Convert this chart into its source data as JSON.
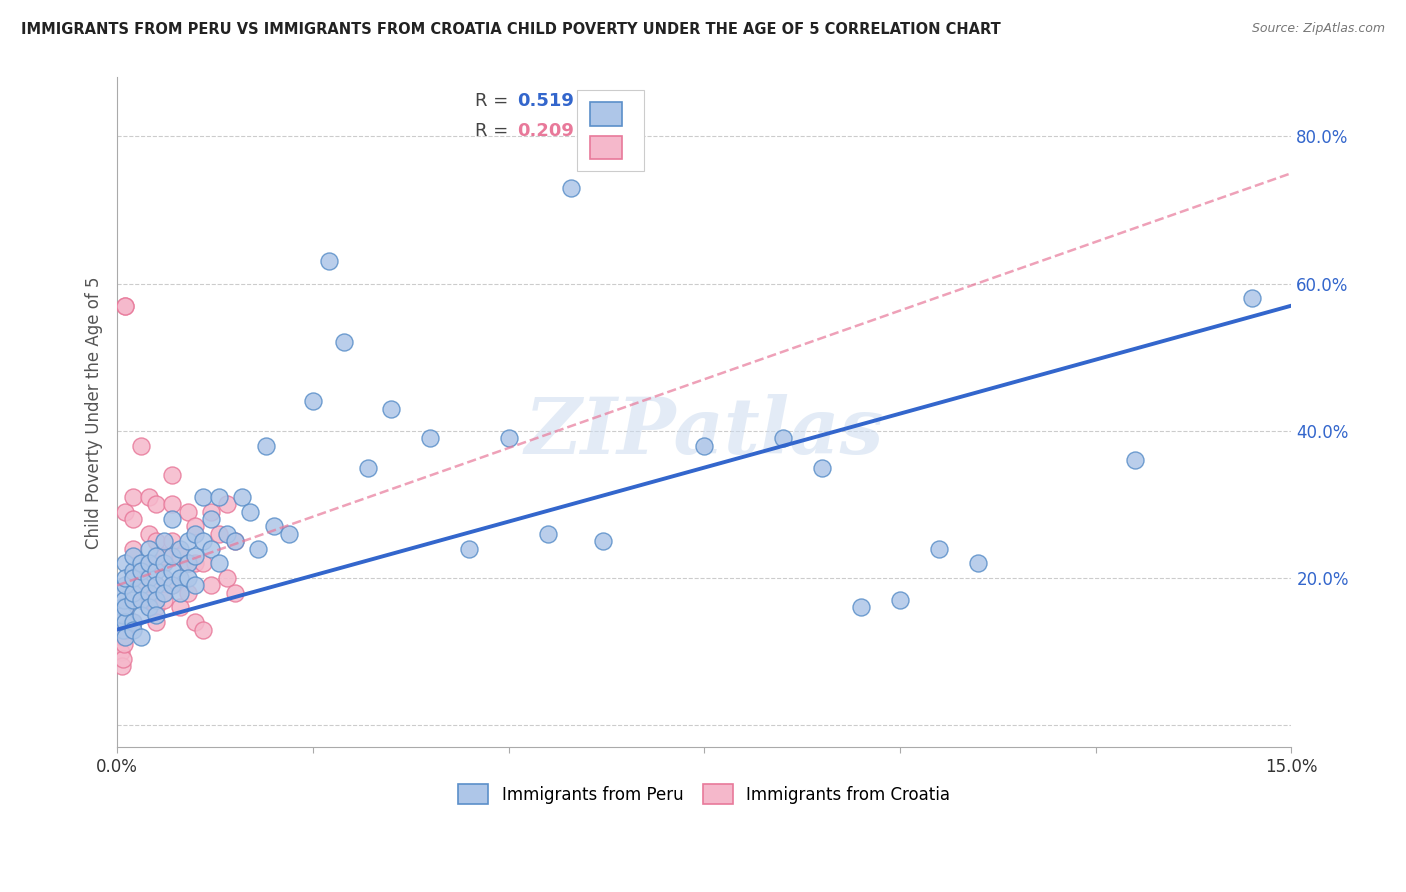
{
  "title": "IMMIGRANTS FROM PERU VS IMMIGRANTS FROM CROATIA CHILD POVERTY UNDER THE AGE OF 5 CORRELATION CHART",
  "source": "Source: ZipAtlas.com",
  "ylabel": "Child Poverty Under the Age of 5",
  "xlim": [
    0,
    0.15
  ],
  "ylim": [
    -0.03,
    0.88
  ],
  "xticks": [
    0.0,
    0.025,
    0.05,
    0.075,
    0.1,
    0.125,
    0.15
  ],
  "xticklabels": [
    "0.0%",
    "",
    "",
    "",
    "",
    "",
    "15.0%"
  ],
  "yticks": [
    0.0,
    0.2,
    0.4,
    0.6,
    0.8
  ],
  "yticklabels": [
    "",
    "20.0%",
    "40.0%",
    "60.0%",
    "80.0%"
  ],
  "peru_color": "#aec6e8",
  "peru_edge_color": "#5b8fc9",
  "croatia_color": "#f5b8cb",
  "croatia_edge_color": "#e8799a",
  "trend_peru_color": "#3366cc",
  "trend_croatia_color": "#e8799a",
  "watermark": "ZIPatlas",
  "peru_x": [
    0.0005,
    0.0006,
    0.0007,
    0.0008,
    0.0009,
    0.001,
    0.001,
    0.001,
    0.001,
    0.001,
    0.001,
    0.002,
    0.002,
    0.002,
    0.002,
    0.002,
    0.002,
    0.002,
    0.003,
    0.003,
    0.003,
    0.003,
    0.003,
    0.003,
    0.004,
    0.004,
    0.004,
    0.004,
    0.004,
    0.005,
    0.005,
    0.005,
    0.005,
    0.005,
    0.006,
    0.006,
    0.006,
    0.006,
    0.007,
    0.007,
    0.007,
    0.007,
    0.008,
    0.008,
    0.008,
    0.009,
    0.009,
    0.009,
    0.01,
    0.01,
    0.01,
    0.011,
    0.011,
    0.012,
    0.012,
    0.013,
    0.013,
    0.014,
    0.015,
    0.016,
    0.017,
    0.018,
    0.019,
    0.02,
    0.022,
    0.025,
    0.027,
    0.029,
    0.032,
    0.035,
    0.04,
    0.045,
    0.05,
    0.055,
    0.058,
    0.062,
    0.075,
    0.085,
    0.09,
    0.095,
    0.1,
    0.105,
    0.11,
    0.13,
    0.145
  ],
  "peru_y": [
    0.18,
    0.16,
    0.13,
    0.15,
    0.17,
    0.19,
    0.22,
    0.14,
    0.2,
    0.16,
    0.12,
    0.17,
    0.21,
    0.14,
    0.23,
    0.13,
    0.18,
    0.2,
    0.19,
    0.17,
    0.22,
    0.15,
    0.21,
    0.12,
    0.2,
    0.18,
    0.24,
    0.16,
    0.22,
    0.21,
    0.19,
    0.17,
    0.23,
    0.15,
    0.22,
    0.2,
    0.18,
    0.25,
    0.21,
    0.19,
    0.23,
    0.28,
    0.24,
    0.2,
    0.18,
    0.25,
    0.22,
    0.2,
    0.26,
    0.23,
    0.19,
    0.31,
    0.25,
    0.28,
    0.24,
    0.31,
    0.22,
    0.26,
    0.25,
    0.31,
    0.29,
    0.24,
    0.38,
    0.27,
    0.26,
    0.44,
    0.63,
    0.52,
    0.35,
    0.43,
    0.39,
    0.24,
    0.39,
    0.26,
    0.73,
    0.25,
    0.38,
    0.39,
    0.35,
    0.16,
    0.17,
    0.24,
    0.22,
    0.36,
    0.58
  ],
  "croatia_x": [
    0.0004,
    0.0005,
    0.0006,
    0.0007,
    0.0008,
    0.0009,
    0.001,
    0.001,
    0.001,
    0.001,
    0.001,
    0.002,
    0.002,
    0.002,
    0.002,
    0.002,
    0.003,
    0.003,
    0.003,
    0.003,
    0.004,
    0.004,
    0.004,
    0.004,
    0.005,
    0.005,
    0.005,
    0.005,
    0.005,
    0.005,
    0.006,
    0.006,
    0.007,
    0.007,
    0.007,
    0.007,
    0.008,
    0.008,
    0.009,
    0.009,
    0.009,
    0.01,
    0.01,
    0.01,
    0.011,
    0.011,
    0.012,
    0.012,
    0.013,
    0.014,
    0.014,
    0.015,
    0.015
  ],
  "croatia_y": [
    0.13,
    0.1,
    0.08,
    0.12,
    0.09,
    0.11,
    0.29,
    0.57,
    0.57,
    0.16,
    0.13,
    0.24,
    0.28,
    0.31,
    0.2,
    0.14,
    0.17,
    0.38,
    0.19,
    0.21,
    0.17,
    0.26,
    0.31,
    0.22,
    0.16,
    0.22,
    0.25,
    0.19,
    0.3,
    0.14,
    0.23,
    0.17,
    0.25,
    0.3,
    0.19,
    0.34,
    0.16,
    0.23,
    0.22,
    0.18,
    0.29,
    0.27,
    0.22,
    0.14,
    0.22,
    0.13,
    0.29,
    0.19,
    0.26,
    0.3,
    0.2,
    0.25,
    0.18
  ]
}
